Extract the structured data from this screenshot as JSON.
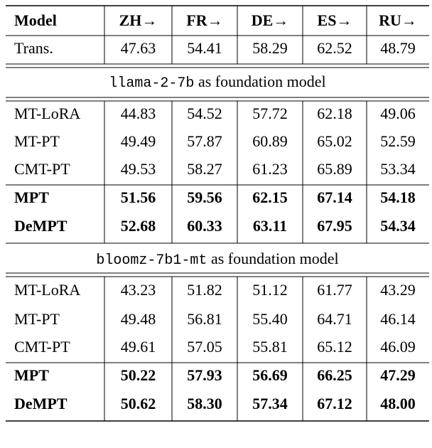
{
  "table": {
    "header": [
      "Model",
      "ZH→",
      "FR→",
      "DE→",
      "ES→",
      "RU→"
    ],
    "baseline": [
      "Trans.",
      "47.63",
      "54.41",
      "58.29",
      "62.52",
      "48.79"
    ],
    "sections": [
      {
        "model_code": "llama-2-7b",
        "title": "as foundation model",
        "rows": [
          [
            "MT-LoRA",
            "44.83",
            "54.52",
            "57.72",
            "62.18",
            "49.06"
          ],
          [
            "MT-PT",
            "49.49",
            "57.87",
            "60.89",
            "65.02",
            "52.59"
          ],
          [
            "CMT-PT",
            "49.53",
            "58.27",
            "61.23",
            "65.89",
            "53.34"
          ],
          [
            "MPT",
            "51.56",
            "59.56",
            "62.15",
            "67.14",
            "54.18"
          ],
          [
            "DeMPT",
            "52.68",
            "60.33",
            "63.11",
            "67.95",
            "54.34"
          ]
        ]
      },
      {
        "model_code": "bloomz-7b1-mt",
        "title": "as foundation model",
        "rows": [
          [
            "MT-LoRA",
            "43.23",
            "51.82",
            "51.12",
            "61.77",
            "43.29"
          ],
          [
            "MT-PT",
            "49.48",
            "56.81",
            "55.40",
            "64.71",
            "46.14"
          ],
          [
            "CMT-PT",
            "49.61",
            "57.05",
            "55.81",
            "65.12",
            "46.09"
          ],
          [
            "MPT",
            "50.22",
            "57.93",
            "56.69",
            "66.25",
            "47.29"
          ],
          [
            "DeMPT",
            "50.62",
            "58.30",
            "57.34",
            "67.12",
            "48.00"
          ]
        ]
      }
    ]
  }
}
